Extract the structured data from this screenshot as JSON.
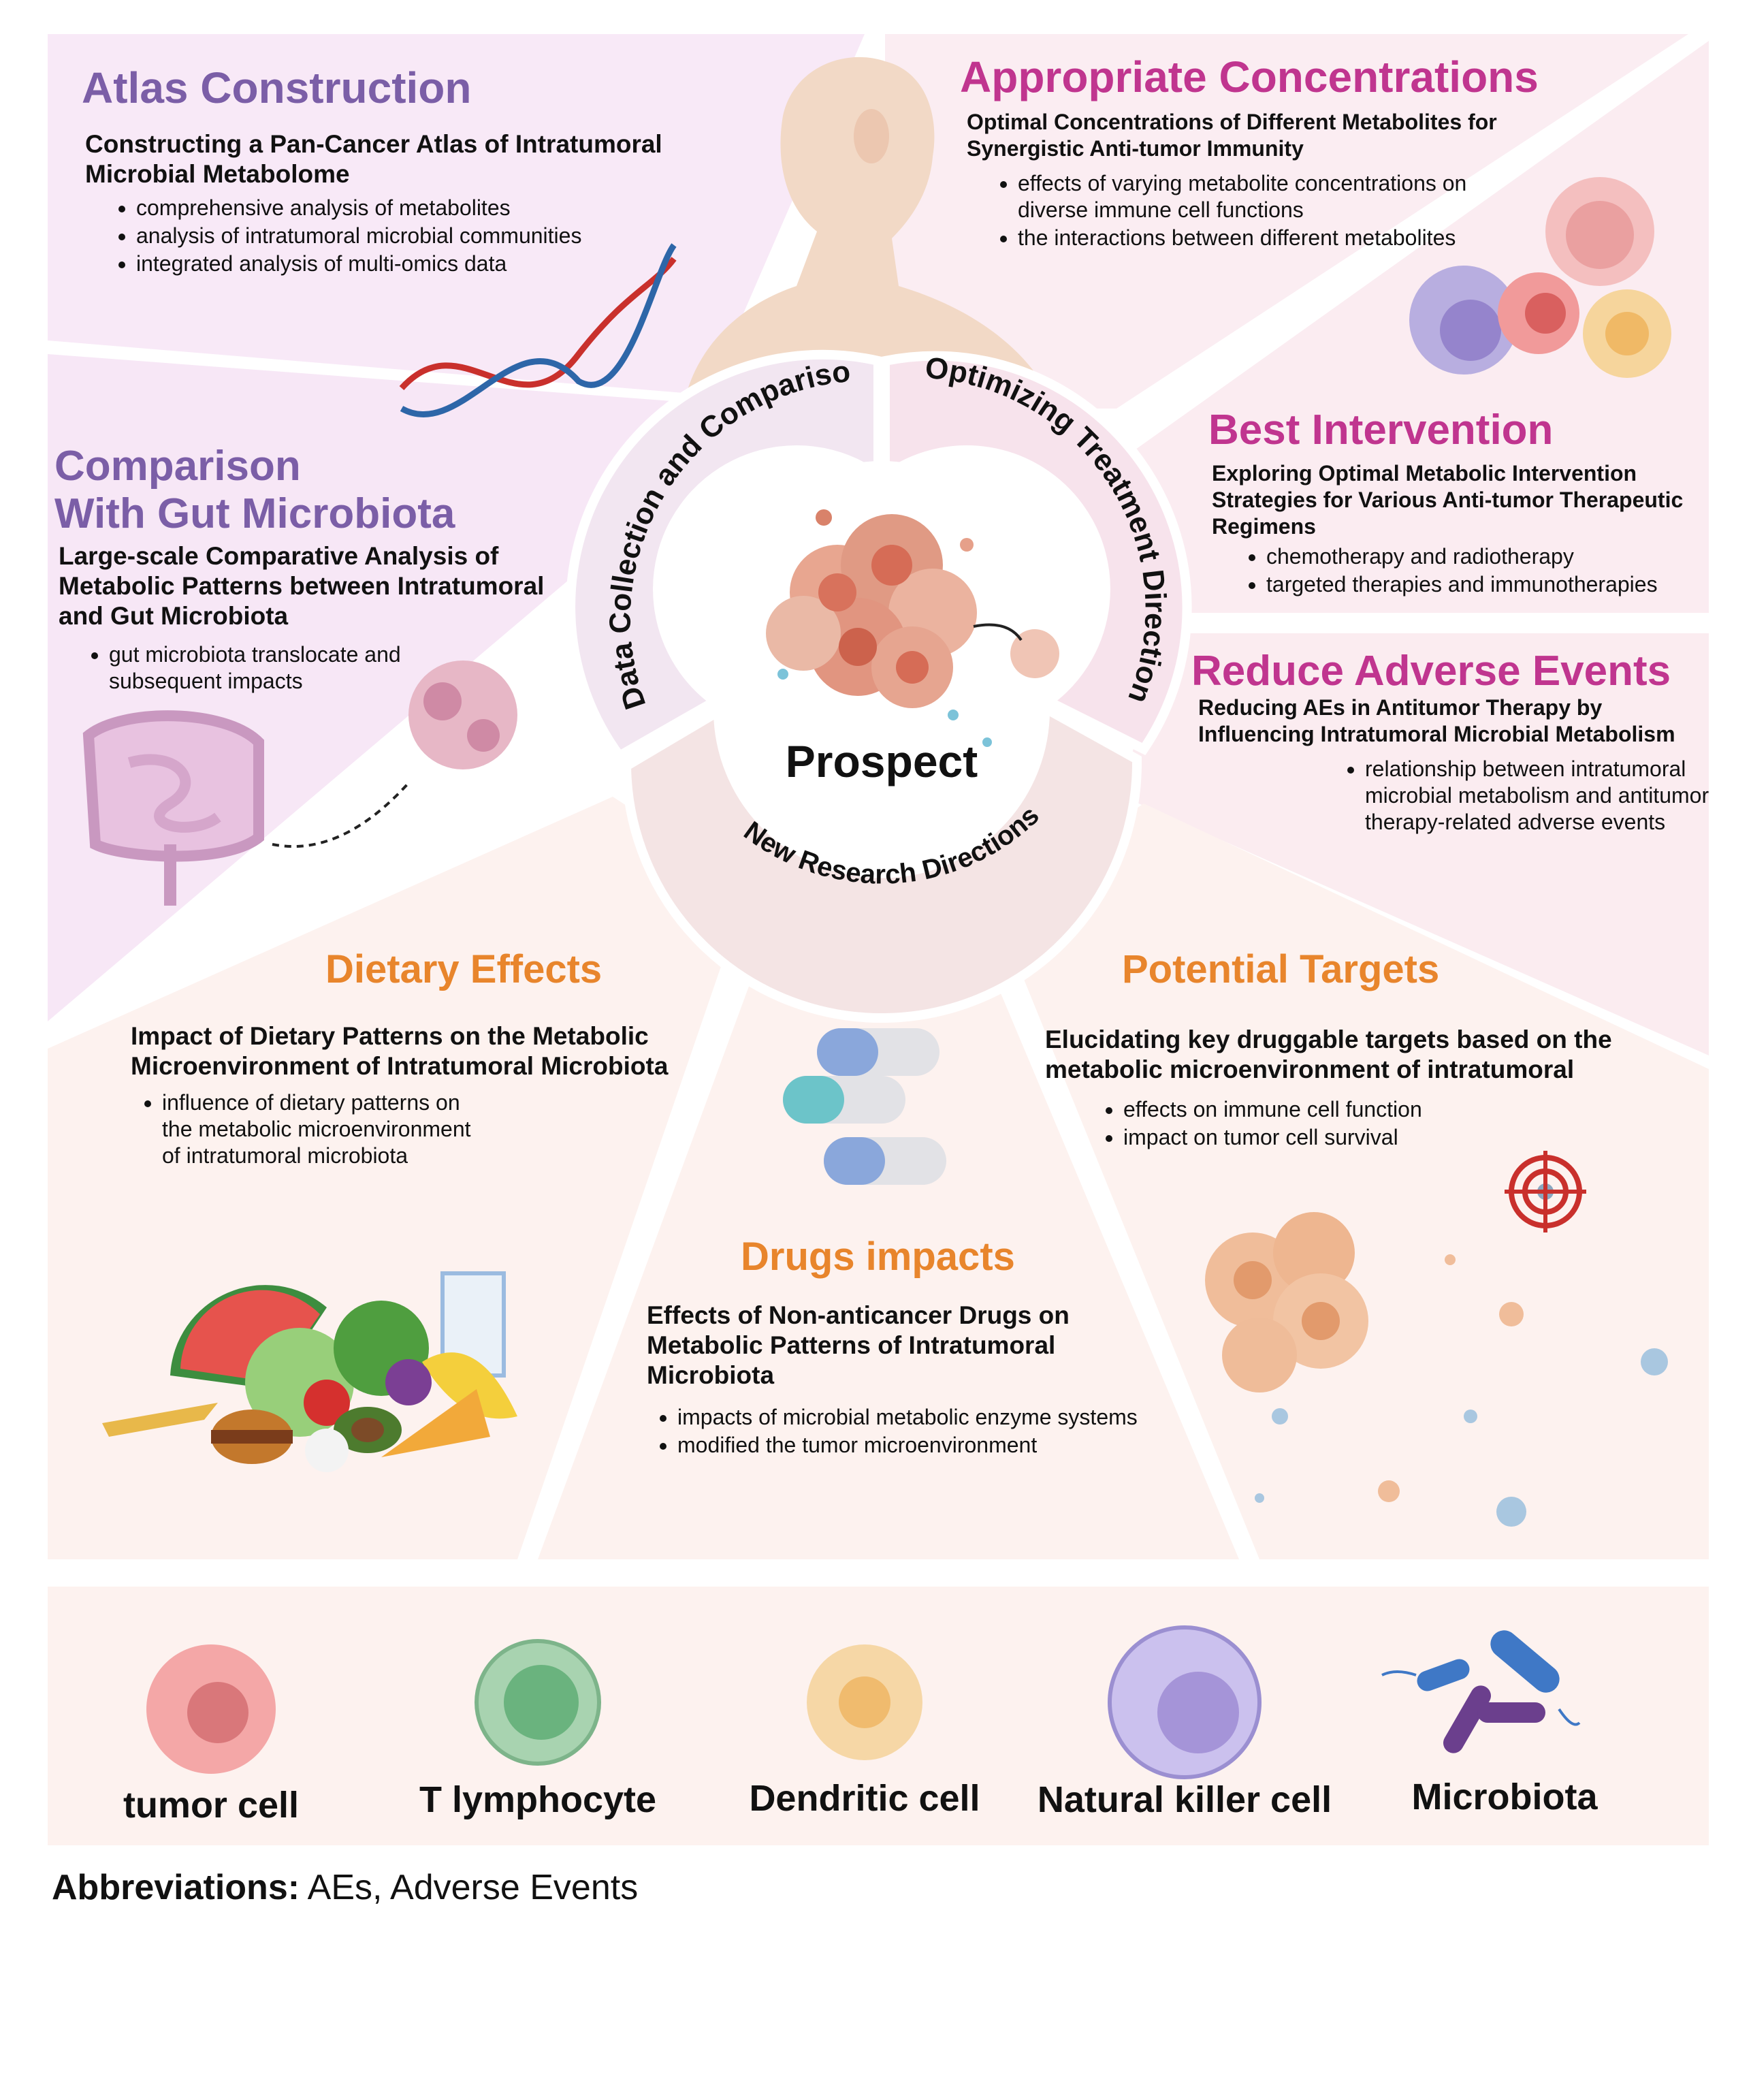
{
  "center": {
    "title": "Prospect",
    "ring_left": "Data Collection and Comparison",
    "ring_right": "Optimizing Treatment Direction",
    "ring_bottom": "New Research Directions"
  },
  "panels": {
    "atlas": {
      "title": "Atlas Construction",
      "subtitle": "Constructing a Pan-Cancer Atlas of Intratumoral Microbial Metabolome",
      "bullets": [
        "comprehensive analysis of metabolites",
        "analysis of intratumoral microbial communities",
        "integrated analysis of multi-omics data"
      ]
    },
    "comparison": {
      "title_line1": "Comparison",
      "title_line2": "With Gut Microbiota",
      "subtitle": "Large-scale Comparative Analysis of Metabolic Patterns between Intratumoral and Gut Microbiota",
      "bullets": [
        "gut microbiota translocate and subsequent impacts"
      ]
    },
    "concentrations": {
      "title": "Appropriate Concentrations",
      "subtitle": "Optimal Concentrations of Different Metabolites for Synergistic Anti-tumor Immunity",
      "bullets": [
        "effects of varying metabolite concentrations on diverse immune cell functions",
        "the interactions between different metabolites"
      ]
    },
    "intervention": {
      "title": "Best Intervention",
      "subtitle": "Exploring Optimal Metabolic Intervention Strategies for Various Anti-tumor Therapeutic Regimens",
      "bullets": [
        "chemotherapy and radiotherapy",
        "targeted therapies and immunotherapies"
      ]
    },
    "adverse": {
      "title": "Reduce Adverse Events",
      "subtitle": "Reducing  AEs in Antitumor Therapy by Influencing Intratumoral Microbial Metabolism",
      "bullets": [
        "relationship between intratumoral microbial metabolism and antitumor therapy-related adverse events"
      ]
    },
    "dietary": {
      "title": "Dietary Effects",
      "subtitle": "Impact of Dietary Patterns on the Metabolic Microenvironment of Intratumoral Microbiota",
      "bullets": [
        "influence of dietary patterns on the metabolic microenvironment of intratumoral microbiota"
      ]
    },
    "drugs": {
      "title": "Drugs impacts",
      "subtitle": "Effects of Non-anticancer Drugs on Metabolic Patterns of Intratumoral Microbiota",
      "bullets": [
        "impacts of microbial metabolic enzyme systems",
        "modified the tumor microenvironment"
      ]
    },
    "targets": {
      "title": "Potential Targets",
      "subtitle": "Elucidating key druggable targets based on the metabolic microenvironment of intratumoral",
      "bullets": [
        "effects on immune cell function",
        "impact on tumor cell survival"
      ]
    }
  },
  "legend": {
    "items": [
      "tumor cell",
      "T lymphocyte",
      "Dendritic cell",
      "Natural killer cell",
      "Microbiota"
    ]
  },
  "footer": {
    "label": "Abbreviations:",
    "text": " AEs, Adverse Events"
  },
  "colors": {
    "purple": "#7b5ea7",
    "magenta": "#c0358f",
    "orange": "#e8852c"
  }
}
